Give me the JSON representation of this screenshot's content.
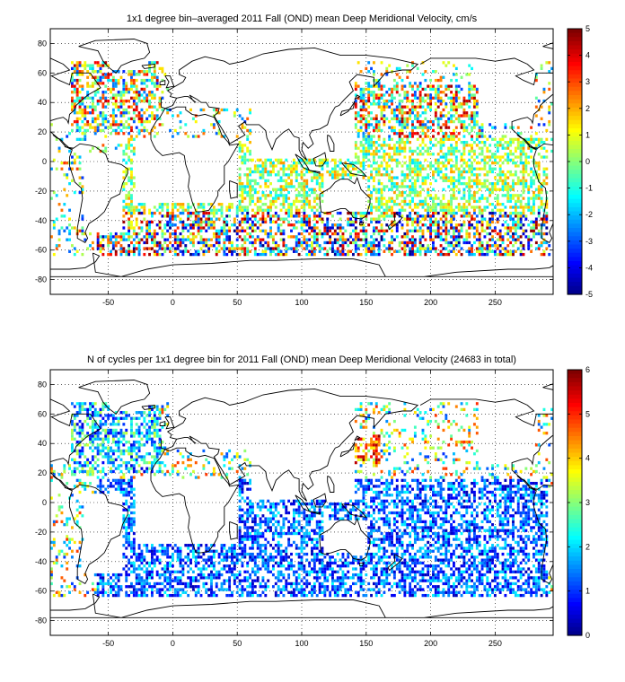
{
  "chart_data": [
    {
      "type": "heatmap",
      "title": "1x1 degree bin–averaged 2011 Fall (OND) mean Deep Meridional Velocity, cm/s",
      "xlabel": "",
      "ylabel": "",
      "x_range": [
        -95,
        295
      ],
      "y_range": [
        -90,
        90
      ],
      "x_ticks": [
        -50,
        0,
        50,
        100,
        150,
        200,
        250
      ],
      "y_ticks": [
        80,
        60,
        40,
        20,
        0,
        -20,
        -40,
        -60,
        -80
      ],
      "x_tick_labels": [
        "-50",
        "0",
        "50",
        "100",
        "150",
        "200",
        "250"
      ],
      "y_tick_labels": [
        "80",
        "60",
        "40",
        "20",
        "0",
        "-20",
        "-40",
        "-60",
        "-80"
      ],
      "grid": true,
      "colormap": "jet",
      "colorbar": {
        "range": [
          -5,
          5
        ],
        "ticks": [
          5,
          4,
          3,
          2,
          1,
          0,
          -1,
          -2,
          -3,
          -4,
          -5
        ],
        "tick_labels": [
          "5",
          "4",
          "3",
          "2",
          "1",
          "0",
          "-1",
          "-2",
          "-3",
          "-4",
          "-5"
        ]
      },
      "data_description_regions": [
        {
          "lon": [
            -80,
            -10
          ],
          "lat": [
            20,
            70
          ],
          "mean": 0.5,
          "spread": 4
        },
        {
          "lon": [
            120,
            240
          ],
          "lat": [
            15,
            50
          ],
          "mean": 0.8,
          "spread": 4
        },
        {
          "lon": [
            -60,
            290
          ],
          "lat": [
            -65,
            -35
          ],
          "mean": 0.0,
          "spread": 5
        },
        {
          "lon": [
            -40,
            290
          ],
          "lat": [
            -35,
            15
          ],
          "mean": 0.3,
          "spread": 2
        }
      ]
    },
    {
      "type": "heatmap",
      "title": "N of cycles per 1x1 degree bin for 2011 Fall (OND) mean Deep Meridional Velocity (24683 in total)",
      "xlabel": "",
      "ylabel": "",
      "x_range": [
        -95,
        295
      ],
      "y_range": [
        -90,
        90
      ],
      "x_ticks": [
        -50,
        0,
        50,
        100,
        150,
        200,
        250
      ],
      "y_ticks": [
        80,
        60,
        40,
        20,
        0,
        -20,
        -40,
        -60,
        -80
      ],
      "x_tick_labels": [
        "-50",
        "0",
        "50",
        "100",
        "150",
        "200",
        "250"
      ],
      "y_tick_labels": [
        "80",
        "60",
        "40",
        "20",
        "0",
        "-20",
        "-40",
        "-60",
        "-80"
      ],
      "grid": true,
      "colormap": "jet",
      "colorbar": {
        "range": [
          0,
          6
        ],
        "ticks": [
          6,
          5,
          4,
          3,
          2,
          1,
          0
        ],
        "tick_labels": [
          "6",
          "5",
          "4",
          "3",
          "2",
          "1",
          "0"
        ]
      },
      "total_count": 24683,
      "data_description_regions": [
        {
          "lon": [
            130,
            160
          ],
          "lat": [
            25,
            45
          ],
          "mean": 4.5,
          "spread": 1.5
        },
        {
          "lon": [
            -80,
            -10
          ],
          "lat": [
            20,
            70
          ],
          "mean": 2.0,
          "spread": 1.5
        },
        {
          "lon": [
            -60,
            290
          ],
          "lat": [
            -65,
            15
          ],
          "mean": 1.3,
          "spread": 1
        }
      ]
    }
  ]
}
